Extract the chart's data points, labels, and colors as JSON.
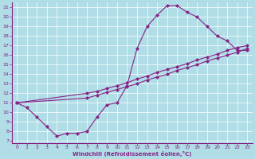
{
  "xlabel": "Windchill (Refroidissement éolien,°C)",
  "ylabel": "",
  "xlim": [
    -0.5,
    23.5
  ],
  "ylim": [
    6.8,
    21.5
  ],
  "yticks": [
    7,
    8,
    9,
    10,
    11,
    12,
    13,
    14,
    15,
    16,
    17,
    18,
    19,
    20,
    21
  ],
  "xticks": [
    0,
    1,
    2,
    3,
    4,
    5,
    6,
    7,
    8,
    9,
    10,
    11,
    12,
    13,
    14,
    15,
    16,
    17,
    18,
    19,
    20,
    21,
    22,
    23
  ],
  "bg_color": "#b0dde6",
  "line_color": "#882288",
  "grid_color": "#ffffff",
  "curve1_x": [
    0,
    1,
    2,
    3,
    4,
    5,
    6,
    7,
    8,
    9,
    10,
    11,
    12,
    13,
    14,
    15,
    16,
    17,
    18,
    19,
    20,
    21,
    22,
    23
  ],
  "curve1_y": [
    11.0,
    10.5,
    9.5,
    8.5,
    7.5,
    7.8,
    7.8,
    8.0,
    9.5,
    10.8,
    11.0,
    12.8,
    16.7,
    19.0,
    20.2,
    21.2,
    21.2,
    20.5,
    20.0,
    19.0,
    18.0,
    17.5,
    16.5,
    16.5
  ],
  "curve2_x": [
    0,
    7,
    8,
    9,
    10,
    11,
    12,
    13,
    14,
    15,
    16,
    17,
    18,
    19,
    20,
    21,
    22,
    23
  ],
  "curve2_y": [
    11.0,
    12.0,
    12.2,
    12.5,
    12.8,
    13.1,
    13.5,
    13.8,
    14.2,
    14.5,
    14.8,
    15.1,
    15.5,
    15.8,
    16.1,
    16.5,
    16.8,
    17.0
  ],
  "curve3_x": [
    0,
    7,
    8,
    9,
    10,
    11,
    12,
    13,
    14,
    15,
    16,
    17,
    18,
    19,
    20,
    21,
    22,
    23
  ],
  "curve3_y": [
    11.0,
    11.5,
    11.8,
    12.1,
    12.4,
    12.7,
    13.0,
    13.4,
    13.7,
    14.0,
    14.4,
    14.7,
    15.0,
    15.4,
    15.7,
    16.0,
    16.3,
    16.7
  ]
}
